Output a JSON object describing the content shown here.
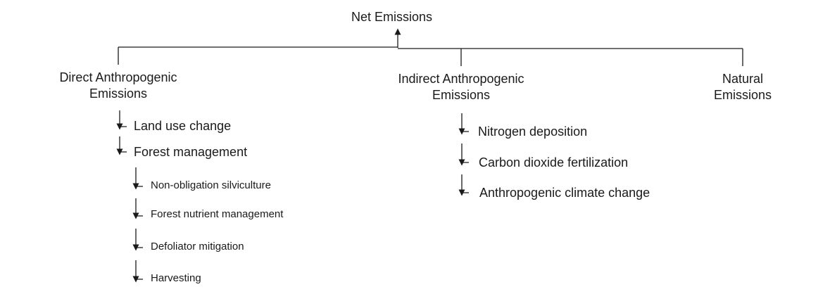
{
  "root": {
    "label": "Net Emissions"
  },
  "branches": [
    {
      "line1": "Direct Anthropogenic",
      "line2": "Emissions",
      "items": [
        {
          "label": "Land use change"
        },
        {
          "label": "Forest management",
          "subitems": [
            {
              "label": "Non-obligation silviculture"
            },
            {
              "label": "Forest nutrient management"
            },
            {
              "label": "Defoliator mitigation"
            },
            {
              "label": "Harvesting"
            }
          ]
        }
      ]
    },
    {
      "line1": "Indirect Anthropogenic",
      "line2": "Emissions",
      "items": [
        {
          "label": "Nitrogen deposition"
        },
        {
          "label": "Carbon dioxide fertilization"
        },
        {
          "label": "Anthropogenic climate change"
        }
      ]
    },
    {
      "line1": "Natural",
      "line2": "Emissions"
    }
  ]
}
